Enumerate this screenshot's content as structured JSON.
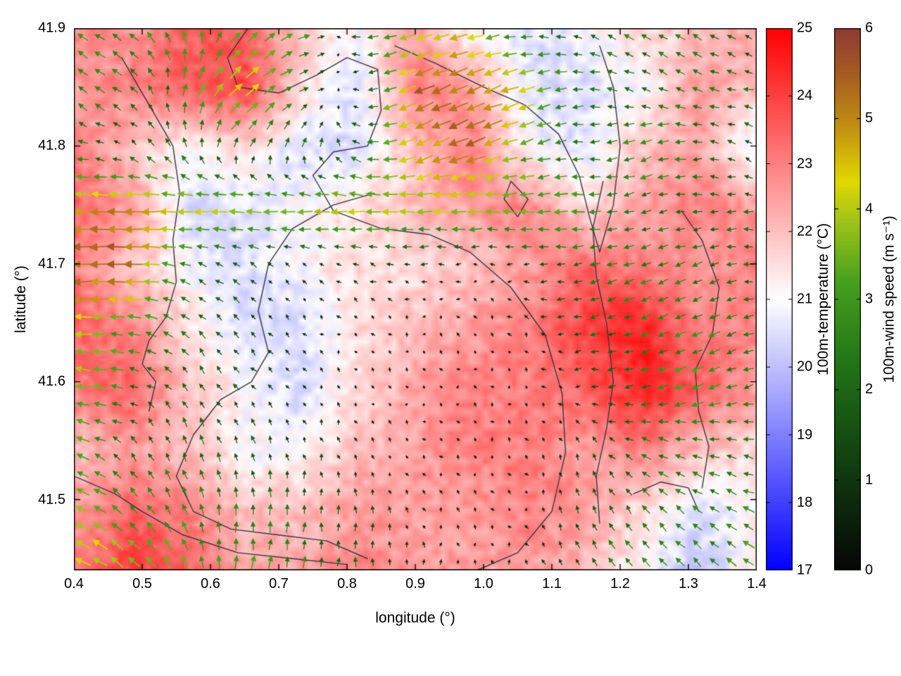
{
  "figure": {
    "xlabel": "longitude (°)",
    "ylabel": "latitude (°)"
  },
  "chart_data": {
    "type": "heatmap",
    "subtype": "temperature-field-with-wind-vector-overlay-and-contours",
    "x_range": [
      0.4,
      1.4
    ],
    "y_range": [
      41.44,
      41.9
    ],
    "x_ticks": {
      "values": [
        0.4,
        0.5,
        0.6,
        0.7,
        0.8,
        0.9,
        1.0,
        1.1,
        1.2,
        1.3,
        1.4
      ],
      "labels": [
        "0.4",
        "0.5",
        "0.6",
        "0.7",
        "0.8",
        "0.9",
        "1.0",
        "1.1",
        "1.2",
        "1.3",
        "1.4"
      ]
    },
    "y_ticks": {
      "values": [
        41.5,
        41.6,
        41.7,
        41.8,
        41.9
      ],
      "labels": [
        "41.5",
        "41.6",
        "41.7",
        "41.8",
        "41.9"
      ]
    },
    "temperature": {
      "label": "100m-temperature (°C)",
      "range": [
        17,
        25
      ],
      "ticks": {
        "values": [
          17,
          18,
          19,
          20,
          21,
          22,
          23,
          24,
          25
        ],
        "labels": [
          "17",
          "18",
          "19",
          "20",
          "21",
          "22",
          "23",
          "24",
          "25"
        ]
      },
      "colormap": [
        {
          "v": 17,
          "c": "#0000ff"
        },
        {
          "v": 21,
          "c": "#ffffff"
        },
        {
          "v": 25,
          "c": "#ff0000"
        }
      ],
      "grid_note": "coarse estimate of field, rows top(41.9) to bottom(41.44), cols 0.4 to 1.4",
      "values": [
        [
          23.0,
          22.5,
          23.5,
          23.5,
          22.0,
          21.0,
          22.5,
          21.0,
          20.5,
          21.0,
          21.5,
          22.0,
          22.5
        ],
        [
          22.5,
          23.0,
          23.5,
          24.0,
          21.5,
          20.5,
          23.0,
          22.5,
          20.5,
          20.5,
          21.0,
          22.5,
          22.0
        ],
        [
          23.0,
          22.0,
          21.0,
          21.5,
          20.5,
          20.5,
          22.0,
          23.0,
          21.0,
          20.5,
          22.0,
          22.5,
          20.5
        ],
        [
          23.5,
          22.5,
          20.5,
          20.5,
          21.0,
          21.5,
          22.0,
          22.5,
          23.0,
          21.5,
          22.5,
          23.0,
          22.5
        ],
        [
          23.0,
          22.0,
          21.0,
          20.5,
          21.0,
          21.5,
          21.5,
          22.0,
          22.5,
          23.5,
          23.0,
          22.5,
          23.0
        ],
        [
          23.5,
          23.0,
          21.5,
          20.5,
          20.5,
          21.5,
          22.0,
          22.5,
          23.0,
          24.0,
          24.5,
          23.0,
          23.0
        ],
        [
          23.0,
          23.5,
          22.0,
          21.0,
          20.5,
          21.5,
          22.5,
          23.0,
          23.0,
          23.5,
          24.5,
          23.5,
          22.5
        ],
        [
          22.0,
          22.5,
          22.0,
          21.0,
          21.0,
          22.0,
          22.5,
          23.0,
          23.0,
          22.5,
          23.0,
          22.0,
          21.5
        ],
        [
          22.5,
          23.5,
          23.0,
          22.0,
          22.0,
          22.5,
          22.5,
          22.5,
          23.0,
          22.5,
          21.5,
          20.5,
          21.0
        ],
        [
          23.0,
          24.0,
          23.5,
          22.5,
          22.5,
          23.0,
          22.5,
          22.5,
          22.5,
          22.0,
          21.0,
          20.0,
          21.5
        ]
      ]
    },
    "wind": {
      "label": "100m-wind speed (m s⁻¹)",
      "range": [
        0,
        6
      ],
      "ticks": {
        "values": [
          0,
          1,
          2,
          3,
          4,
          5,
          6
        ],
        "labels": [
          "0",
          "1",
          "2",
          "3",
          "4",
          "5",
          "6"
        ]
      },
      "colormap": [
        {
          "v": 0,
          "c": "#060606"
        },
        {
          "v": 1.2,
          "c": "#123f10"
        },
        {
          "v": 2.2,
          "c": "#1f7016"
        },
        {
          "v": 3.2,
          "c": "#46a11d"
        },
        {
          "v": 3.9,
          "c": "#a6c41a"
        },
        {
          "v": 4.3,
          "c": "#e0d800"
        },
        {
          "v": 4.9,
          "c": "#c39112"
        },
        {
          "v": 5.5,
          "c": "#a55b20"
        },
        {
          "v": 6,
          "c": "#8e3a33"
        }
      ],
      "grid_note": "coarse estimate of u(east)/v(north) components in m/s, same grid as temperature",
      "u": [
        [
          -3.0,
          -2.0,
          -1.0,
          2.5,
          3.0,
          -2.0,
          -4.0,
          -4.0,
          -2.0,
          -2.0,
          -2.0,
          -2.0,
          -1.0
        ],
        [
          -2.0,
          -2.0,
          1.0,
          3.5,
          2.0,
          -1.0,
          -5.0,
          -5.0,
          -4.0,
          -2.0,
          -2.0,
          -2.0,
          -2.0
        ],
        [
          -2.0,
          -1.0,
          -1.0,
          1.0,
          1.0,
          -2.0,
          -4.0,
          -5.0,
          -3.0,
          -2.0,
          -3.0,
          -2.0,
          -1.0
        ],
        [
          -4.5,
          -5.0,
          -4.0,
          -4.0,
          -4.0,
          -4.0,
          -4.0,
          -4.0,
          -3.5,
          -3.0,
          -2.0,
          -2.0,
          -2.0
        ],
        [
          -5.5,
          -5.5,
          -2.0,
          -1.0,
          -0.5,
          -1.0,
          -1.0,
          -0.5,
          -1.0,
          -2.0,
          -2.5,
          -2.0,
          -2.0
        ],
        [
          -4.0,
          -3.0,
          -1.5,
          -1.0,
          -0.5,
          -0.3,
          -0.2,
          -0.3,
          -0.5,
          -2.0,
          -2.2,
          -2.5,
          -2.0
        ],
        [
          -4.0,
          -2.0,
          -1.0,
          -1.0,
          -0.3,
          -0.2,
          -0.1,
          -0.2,
          -0.3,
          -1.0,
          -2.2,
          -3.0,
          -2.0
        ],
        [
          -3.0,
          -1.0,
          -0.5,
          -0.5,
          -0.3,
          -0.2,
          -0.2,
          -0.2,
          -0.3,
          -0.5,
          -2.0,
          -2.5,
          -2.0
        ],
        [
          -3.5,
          -2.0,
          -1.0,
          0.0,
          0.0,
          0.0,
          -0.2,
          -0.2,
          -0.3,
          -0.5,
          -1.5,
          -2.0,
          -2.5
        ],
        [
          -4.5,
          -3.0,
          -1.0,
          0.5,
          0.5,
          0.0,
          0.0,
          0.0,
          -0.3,
          -1.0,
          -2.0,
          -2.0,
          -2.5
        ]
      ],
      "v": [
        [
          1.0,
          2.0,
          3.0,
          2.5,
          1.0,
          0.0,
          -1.0,
          -1.0,
          0.0,
          1.0,
          1.0,
          1.0,
          1.0
        ],
        [
          2.0,
          1.0,
          3.0,
          3.0,
          1.0,
          0.0,
          -2.0,
          -2.0,
          -1.0,
          0.0,
          1.0,
          1.0,
          0.0
        ],
        [
          0.0,
          1.0,
          2.0,
          2.0,
          2.0,
          1.0,
          -2.0,
          -2.0,
          -1.0,
          0.0,
          -1.0,
          0.0,
          1.0
        ],
        [
          0.0,
          0.0,
          0.0,
          0.0,
          0.0,
          0.0,
          0.0,
          0.0,
          0.0,
          0.0,
          -0.5,
          0.0,
          0.0
        ],
        [
          -0.5,
          0.0,
          1.0,
          1.0,
          0.5,
          0.5,
          0.0,
          0.0,
          0.0,
          -0.5,
          -1.0,
          -1.0,
          0.0
        ],
        [
          0.0,
          0.5,
          1.5,
          1.0,
          0.5,
          0.3,
          0.3,
          0.3,
          0.5,
          -0.5,
          -0.8,
          -1.0,
          -0.5
        ],
        [
          0.5,
          0.5,
          1.5,
          1.0,
          0.5,
          0.3,
          0.2,
          0.3,
          0.3,
          0.0,
          -0.5,
          -1.0,
          -0.5
        ],
        [
          1.0,
          1.5,
          2.0,
          1.5,
          1.0,
          0.5,
          0.3,
          0.4,
          0.5,
          1.0,
          1.0,
          0.5,
          0.5
        ],
        [
          1.5,
          2.0,
          2.5,
          2.5,
          2.0,
          1.5,
          0.5,
          0.5,
          0.5,
          1.5,
          2.0,
          1.5,
          1.0
        ],
        [
          2.0,
          2.5,
          3.0,
          3.0,
          2.5,
          2.0,
          1.0,
          0.5,
          0.5,
          1.5,
          2.0,
          2.0,
          1.5
        ]
      ]
    },
    "contours": [
      [
        [
          0.47,
          41.875
        ],
        [
          0.5,
          41.845
        ],
        [
          0.545,
          41.8
        ],
        [
          0.555,
          41.76
        ],
        [
          0.545,
          41.72
        ],
        [
          0.55,
          41.685
        ],
        [
          0.535,
          41.655
        ],
        [
          0.51,
          41.635
        ],
        [
          0.5,
          41.615
        ],
        [
          0.52,
          41.6
        ],
        [
          0.51,
          41.575
        ]
      ],
      [
        [
          0.655,
          41.9
        ],
        [
          0.625,
          41.875
        ],
        [
          0.64,
          41.85
        ],
        [
          0.7,
          41.845
        ],
        [
          0.755,
          41.86
        ],
        [
          0.8,
          41.875
        ],
        [
          0.845,
          41.865
        ],
        [
          0.85,
          41.83
        ],
        [
          0.83,
          41.8
        ],
        [
          0.78,
          41.795
        ],
        [
          0.75,
          41.775
        ],
        [
          0.78,
          41.745
        ],
        [
          0.85,
          41.73
        ],
        [
          0.92,
          41.725
        ],
        [
          0.98,
          41.71
        ],
        [
          1.04,
          41.68
        ],
        [
          1.09,
          41.64
        ],
        [
          1.115,
          41.59
        ],
        [
          1.12,
          41.54
        ],
        [
          1.1,
          41.49
        ],
        [
          1.05,
          41.455
        ],
        [
          0.99,
          41.44
        ]
      ],
      [
        [
          0.84,
          41.76
        ],
        [
          0.78,
          41.75
        ],
        [
          0.72,
          41.73
        ],
        [
          0.685,
          41.7
        ],
        [
          0.67,
          41.66
        ],
        [
          0.685,
          41.625
        ],
        [
          0.66,
          41.6
        ],
        [
          0.615,
          41.585
        ],
        [
          0.575,
          41.555
        ],
        [
          0.55,
          41.52
        ],
        [
          0.575,
          41.49
        ],
        [
          0.63,
          41.475
        ],
        [
          0.7,
          41.47
        ],
        [
          0.77,
          41.465
        ],
        [
          0.83,
          41.45
        ]
      ],
      [
        [
          0.4,
          41.52
        ],
        [
          0.46,
          41.505
        ],
        [
          0.5,
          41.49
        ],
        [
          0.56,
          41.47
        ],
        [
          0.64,
          41.455
        ],
        [
          0.72,
          41.45
        ],
        [
          0.8,
          41.445
        ]
      ],
      [
        [
          0.87,
          41.885
        ],
        [
          0.93,
          41.87
        ],
        [
          1.0,
          41.85
        ],
        [
          1.06,
          41.835
        ],
        [
          1.11,
          41.81
        ],
        [
          1.14,
          41.775
        ],
        [
          1.155,
          41.74
        ],
        [
          1.17,
          41.71
        ],
        [
          1.19,
          41.75
        ],
        [
          1.2,
          41.8
        ],
        [
          1.19,
          41.85
        ],
        [
          1.17,
          41.885
        ]
      ],
      [
        [
          1.04,
          41.77
        ],
        [
          1.065,
          41.755
        ],
        [
          1.05,
          41.74
        ],
        [
          1.03,
          41.755
        ],
        [
          1.04,
          41.77
        ]
      ],
      [
        [
          1.175,
          41.77
        ],
        [
          1.16,
          41.73
        ],
        [
          1.165,
          41.69
        ],
        [
          1.18,
          41.65
        ],
        [
          1.19,
          41.6
        ],
        [
          1.18,
          41.56
        ],
        [
          1.165,
          41.52
        ],
        [
          1.17,
          41.48
        ]
      ],
      [
        [
          1.29,
          41.745
        ],
        [
          1.32,
          41.72
        ],
        [
          1.345,
          41.68
        ],
        [
          1.335,
          41.64
        ],
        [
          1.31,
          41.61
        ],
        [
          1.315,
          41.575
        ],
        [
          1.33,
          41.545
        ],
        [
          1.32,
          41.51
        ]
      ],
      [
        [
          1.22,
          41.505
        ],
        [
          1.26,
          41.515
        ],
        [
          1.3,
          41.51
        ],
        [
          1.315,
          41.49
        ]
      ]
    ]
  }
}
